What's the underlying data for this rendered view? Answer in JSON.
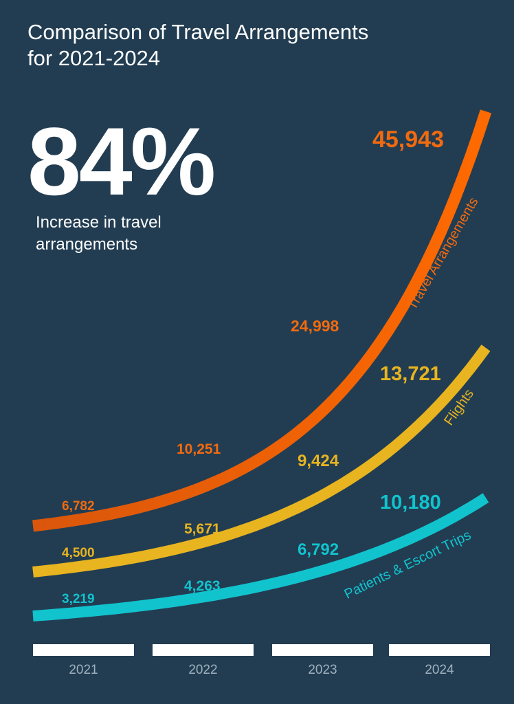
{
  "title": {
    "line1": "Comparison of Travel Arrangements",
    "line2": "for 2021-2024"
  },
  "headline_stat": {
    "value": "84%",
    "caption_line1": "Increase in travel",
    "caption_line2": "arrangements"
  },
  "colors": {
    "background": "#223d52",
    "travel_arrangements": "#f26a0f",
    "flights": "#e8b420",
    "patients_escort": "#11c3cd",
    "year_bar": "#ffffff",
    "year_label": "#9fb0bd"
  },
  "chart_data": {
    "type": "line",
    "categories": [
      "2021",
      "2022",
      "2023",
      "2024"
    ],
    "series": [
      {
        "name": "Travel Arrangements",
        "values": [
          6782,
          10251,
          24998,
          45943
        ],
        "labels": [
          "6,782",
          "10,251",
          "24,998",
          "45,943"
        ]
      },
      {
        "name": "Flights",
        "values": [
          4500,
          5671,
          9424,
          13721
        ],
        "labels": [
          "4,500",
          "5,671",
          "9,424",
          "13,721"
        ]
      },
      {
        "name": "Patients & Escort Trips",
        "values": [
          3219,
          4263,
          6792,
          10180
        ],
        "labels": [
          "3,219",
          "4,263",
          "6,792",
          "10,180"
        ]
      }
    ],
    "title": "Comparison of Travel Arrangements for 2021-2024",
    "grid": false,
    "legend": "labels along curves"
  }
}
